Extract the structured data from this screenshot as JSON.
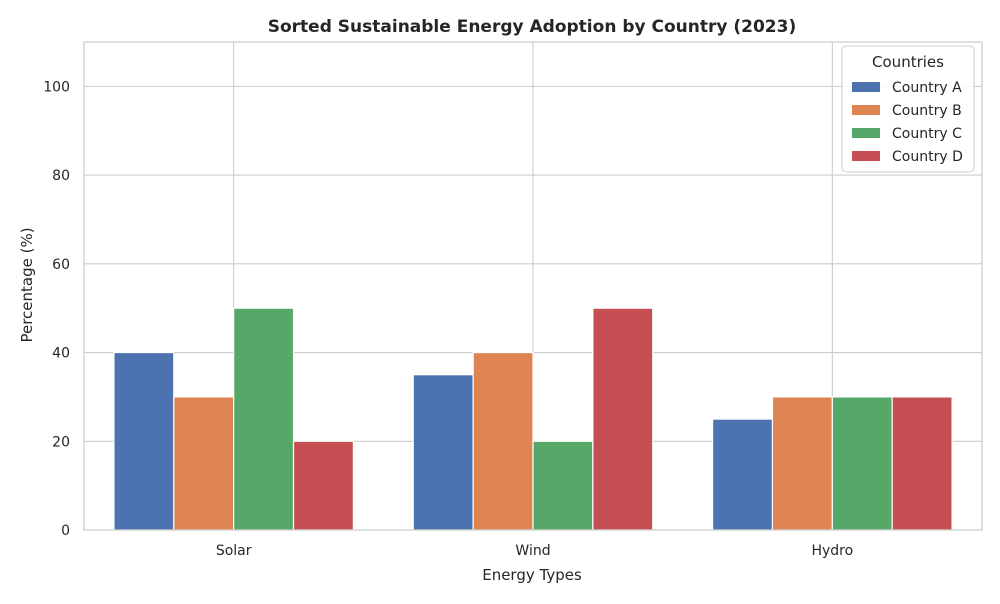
{
  "chart_data": {
    "type": "bar",
    "title": "Sorted Sustainable Energy Adoption by Country (2023)",
    "xlabel": "Energy Types",
    "ylabel": "Percentage (%)",
    "categories": [
      "Solar",
      "Wind",
      "Hydro"
    ],
    "series": [
      {
        "name": "Country A",
        "values": [
          40,
          35,
          25
        ],
        "color": "#4c72b0"
      },
      {
        "name": "Country B",
        "values": [
          30,
          40,
          30
        ],
        "color": "#dd8452"
      },
      {
        "name": "Country C",
        "values": [
          50,
          20,
          30
        ],
        "color": "#55a868"
      },
      {
        "name": "Country D",
        "values": [
          20,
          50,
          30
        ],
        "color": "#c44e52"
      }
    ],
    "ylim": [
      0,
      110
    ],
    "yticks": [
      0,
      20,
      40,
      60,
      80,
      100
    ],
    "grid": true,
    "legend": {
      "title": "Countries",
      "placement": "top-right"
    }
  }
}
